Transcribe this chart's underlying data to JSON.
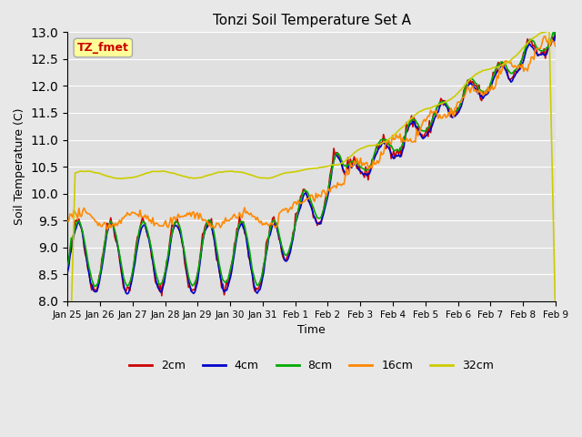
{
  "title": "Tonzi Soil Temperature Set A",
  "xlabel": "Time",
  "ylabel": "Soil Temperature (C)",
  "ylim": [
    8.0,
    13.0
  ],
  "yticks": [
    8.0,
    8.5,
    9.0,
    9.5,
    10.0,
    10.5,
    11.0,
    11.5,
    12.0,
    12.5,
    13.0
  ],
  "xtick_labels": [
    "Jan 25",
    "Jan 26",
    "Jan 27",
    "Jan 28",
    "Jan 29",
    "Jan 30",
    "Jan 31",
    "Feb 1",
    "Feb 2",
    "Feb 3",
    "Feb 4",
    "Feb 5",
    "Feb 6",
    "Feb 7",
    "Feb 8",
    "Feb 9"
  ],
  "legend_labels": [
    "2cm",
    "4cm",
    "8cm",
    "16cm",
    "32cm"
  ],
  "legend_colors": [
    "#cc0000",
    "#0000cc",
    "#00aa00",
    "#ff8800",
    "#cccc00"
  ],
  "line_colors": {
    "2cm": "#cc0000",
    "4cm": "#0000cc",
    "8cm": "#00aa00",
    "16cm": "#ff8800",
    "32cm": "#cccc00"
  },
  "background_color": "#e8e8e8",
  "plot_bg_color": "#e0e0e0",
  "annotation_text": "TZ_fmet",
  "annotation_color": "#cc0000",
  "annotation_bg": "#ffff99",
  "annotation_border": "#aaaaaa"
}
